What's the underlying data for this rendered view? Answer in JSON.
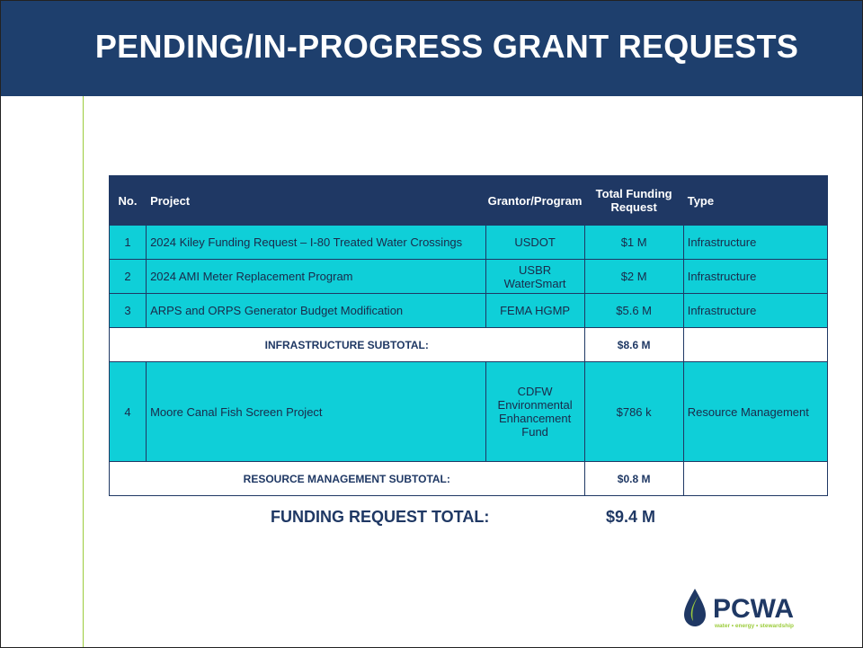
{
  "header": {
    "title": "PENDING/IN-PROGRESS GRANT REQUESTS"
  },
  "table": {
    "columns": [
      "No.",
      "Project",
      "Grantor/Program",
      "Total Funding Request",
      "Type"
    ],
    "sections": [
      {
        "rows": [
          [
            "1",
            "2024 Kiley Funding Request – I-80 Treated Water Crossings",
            "USDOT",
            "$1 M",
            "Infrastructure"
          ],
          [
            "2",
            "2024 AMI Meter Replacement Program",
            "USBR WaterSmart",
            "$2 M",
            "Infrastructure"
          ],
          [
            "3",
            "ARPS and ORPS Generator Budget Modification",
            "FEMA HGMP",
            "$5.6 M",
            "Infrastructure"
          ]
        ],
        "subtotal": {
          "label": "INFRASTRUCTURE SUBTOTAL:",
          "value": "$8.6 M"
        }
      },
      {
        "rows": [
          [
            "4",
            "Moore Canal Fish Screen Project",
            "CDFW Environmental Enhancement Fund",
            "$786 k",
            "Resource Management"
          ]
        ],
        "subtotal": {
          "label": "RESOURCE MANAGEMENT SUBTOTAL:",
          "value": "$0.8 M"
        }
      }
    ]
  },
  "total": {
    "label": "FUNDING REQUEST TOTAL:",
    "value": "$9.4 M"
  },
  "logo": {
    "name": "PCWA",
    "tagline": "water • energy • stewardship"
  }
}
